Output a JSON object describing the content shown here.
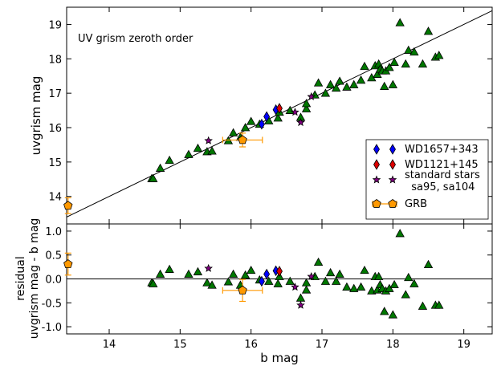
{
  "chart_data": [
    {
      "type": "scatter",
      "panel": "top",
      "annotation": "UV grism zeroth order",
      "xlabel": "",
      "ylabel": "uvgrism mag",
      "xlim": [
        13.4,
        19.4
      ],
      "ylim": [
        13.2,
        19.5
      ],
      "y_ticks": [
        14,
        15,
        16,
        17,
        18,
        19
      ],
      "x_ticklabels_shown": false,
      "legend_position": "lower-right",
      "reference_line": {
        "label": "",
        "slope": 1,
        "intercept": 0.0
      },
      "series": [
        {
          "name": "WD1657+343",
          "marker": "diamond",
          "color": "#0000ff",
          "points": [
            [
              16.15,
              16.1
            ],
            [
              16.22,
              16.32
            ],
            [
              16.35,
              16.52
            ]
          ]
        },
        {
          "name": "WD1121+145",
          "marker": "diamond",
          "color": "#dd0000",
          "points": [
            [
              16.4,
              16.56
            ]
          ]
        },
        {
          "name": "standard stars sa95, sa104",
          "marker": "star",
          "color": "#800080",
          "points": [
            [
              15.4,
              15.62
            ],
            [
              16.62,
              16.45
            ],
            [
              16.7,
              16.15
            ],
            [
              16.85,
              16.9
            ]
          ]
        },
        {
          "name": "",
          "marker": "triangle",
          "color": "#007700",
          "points": [
            [
              14.6,
              14.52
            ],
            [
              14.62,
              14.52
            ],
            [
              14.72,
              14.82
            ],
            [
              14.85,
              15.05
            ],
            [
              15.12,
              15.22
            ],
            [
              15.25,
              15.4
            ],
            [
              15.38,
              15.3
            ],
            [
              15.45,
              15.32
            ],
            [
              15.68,
              15.62
            ],
            [
              15.75,
              15.85
            ],
            [
              15.85,
              15.72
            ],
            [
              15.92,
              16.0
            ],
            [
              16.0,
              16.18
            ],
            [
              16.12,
              16.1
            ],
            [
              16.25,
              16.2
            ],
            [
              16.38,
              16.28
            ],
            [
              16.4,
              16.45
            ],
            [
              16.55,
              16.5
            ],
            [
              16.7,
              16.3
            ],
            [
              16.78,
              16.55
            ],
            [
              16.78,
              16.7
            ],
            [
              16.9,
              16.95
            ],
            [
              16.95,
              17.3
            ],
            [
              17.05,
              17.0
            ],
            [
              17.12,
              17.25
            ],
            [
              17.2,
              17.15
            ],
            [
              17.25,
              17.35
            ],
            [
              17.35,
              17.18
            ],
            [
              17.45,
              17.25
            ],
            [
              17.55,
              17.38
            ],
            [
              17.6,
              17.78
            ],
            [
              17.7,
              17.45
            ],
            [
              17.75,
              17.8
            ],
            [
              17.78,
              17.55
            ],
            [
              17.8,
              17.85
            ],
            [
              17.82,
              17.7
            ],
            [
              17.85,
              17.65
            ],
            [
              17.88,
              17.2
            ],
            [
              17.9,
              17.65
            ],
            [
              17.95,
              17.75
            ],
            [
              18.0,
              17.25
            ],
            [
              18.02,
              17.9
            ],
            [
              18.1,
              19.05
            ],
            [
              18.18,
              17.85
            ],
            [
              18.22,
              18.25
            ],
            [
              18.3,
              18.2
            ],
            [
              18.42,
              17.85
            ],
            [
              18.5,
              18.8
            ],
            [
              18.6,
              18.05
            ],
            [
              18.65,
              18.1
            ]
          ]
        },
        {
          "name": "GRB",
          "marker": "pentagon",
          "color": "#ff9900",
          "points": [
            [
              13.42,
              13.73
            ],
            [
              15.88,
              15.64
            ]
          ],
          "x_errors": [
            0.0,
            0.28
          ],
          "y_errors": [
            0.23,
            0.2
          ]
        }
      ]
    },
    {
      "type": "scatter",
      "panel": "bottom",
      "xlabel": "b mag",
      "ylabel": "residual\nuvgrism mag - b mag",
      "xlim": [
        13.4,
        19.4
      ],
      "ylim": [
        -1.15,
        1.15
      ],
      "x_ticks": [
        14,
        15,
        16,
        17,
        18,
        19
      ],
      "y_ticks": [
        -1.0,
        -0.5,
        0.0,
        0.5,
        1.0
      ],
      "reference_line": {
        "label": "",
        "y": 0.0
      },
      "series": [
        {
          "name": "WD1657+343",
          "marker": "diamond",
          "color": "#0000ff",
          "points": [
            [
              16.15,
              -0.05
            ],
            [
              16.22,
              0.1
            ],
            [
              16.35,
              0.17
            ]
          ]
        },
        {
          "name": "WD1121+145",
          "marker": "diamond",
          "color": "#dd0000",
          "points": [
            [
              16.4,
              0.16
            ]
          ]
        },
        {
          "name": "standard stars sa95, sa104",
          "marker": "star",
          "color": "#800080",
          "points": [
            [
              15.4,
              0.22
            ],
            [
              16.62,
              -0.17
            ],
            [
              16.7,
              -0.55
            ],
            [
              16.85,
              0.05
            ]
          ]
        },
        {
          "name": "",
          "marker": "triangle",
          "color": "#007700",
          "points": [
            [
              14.6,
              -0.08
            ],
            [
              14.62,
              -0.1
            ],
            [
              14.72,
              0.1
            ],
            [
              14.85,
              0.2
            ],
            [
              15.12,
              0.1
            ],
            [
              15.25,
              0.15
            ],
            [
              15.38,
              -0.08
            ],
            [
              15.45,
              -0.13
            ],
            [
              15.68,
              -0.06
            ],
            [
              15.75,
              0.1
            ],
            [
              15.85,
              -0.13
            ],
            [
              15.92,
              0.08
            ],
            [
              16.0,
              0.18
            ],
            [
              16.12,
              -0.02
            ],
            [
              16.25,
              -0.05
            ],
            [
              16.38,
              -0.1
            ],
            [
              16.4,
              0.05
            ],
            [
              16.55,
              -0.05
            ],
            [
              16.7,
              -0.4
            ],
            [
              16.78,
              -0.23
            ],
            [
              16.78,
              -0.08
            ],
            [
              16.9,
              0.05
            ],
            [
              16.95,
              0.35
            ],
            [
              17.05,
              -0.05
            ],
            [
              17.12,
              0.13
            ],
            [
              17.2,
              -0.05
            ],
            [
              17.25,
              0.1
            ],
            [
              17.35,
              -0.17
            ],
            [
              17.45,
              -0.2
            ],
            [
              17.55,
              -0.17
            ],
            [
              17.6,
              0.18
            ],
            [
              17.7,
              -0.25
            ],
            [
              17.75,
              0.05
            ],
            [
              17.78,
              -0.23
            ],
            [
              17.8,
              0.05
            ],
            [
              17.82,
              -0.12
            ],
            [
              17.85,
              -0.2
            ],
            [
              17.88,
              -0.68
            ],
            [
              17.9,
              -0.25
            ],
            [
              17.95,
              -0.2
            ],
            [
              18.0,
              -0.75
            ],
            [
              18.02,
              -0.12
            ],
            [
              18.1,
              0.95
            ],
            [
              18.18,
              -0.33
            ],
            [
              18.22,
              0.03
            ],
            [
              18.3,
              -0.1
            ],
            [
              18.42,
              -0.57
            ],
            [
              18.5,
              0.3
            ],
            [
              18.6,
              -0.55
            ],
            [
              18.65,
              -0.55
            ]
          ]
        },
        {
          "name": "GRB",
          "marker": "pentagon",
          "color": "#ff9900",
          "points": [
            [
              13.42,
              0.31
            ],
            [
              15.88,
              -0.24
            ]
          ],
          "x_errors": [
            0.0,
            0.28
          ],
          "y_errors": [
            0.23,
            0.23
          ]
        }
      ]
    }
  ]
}
